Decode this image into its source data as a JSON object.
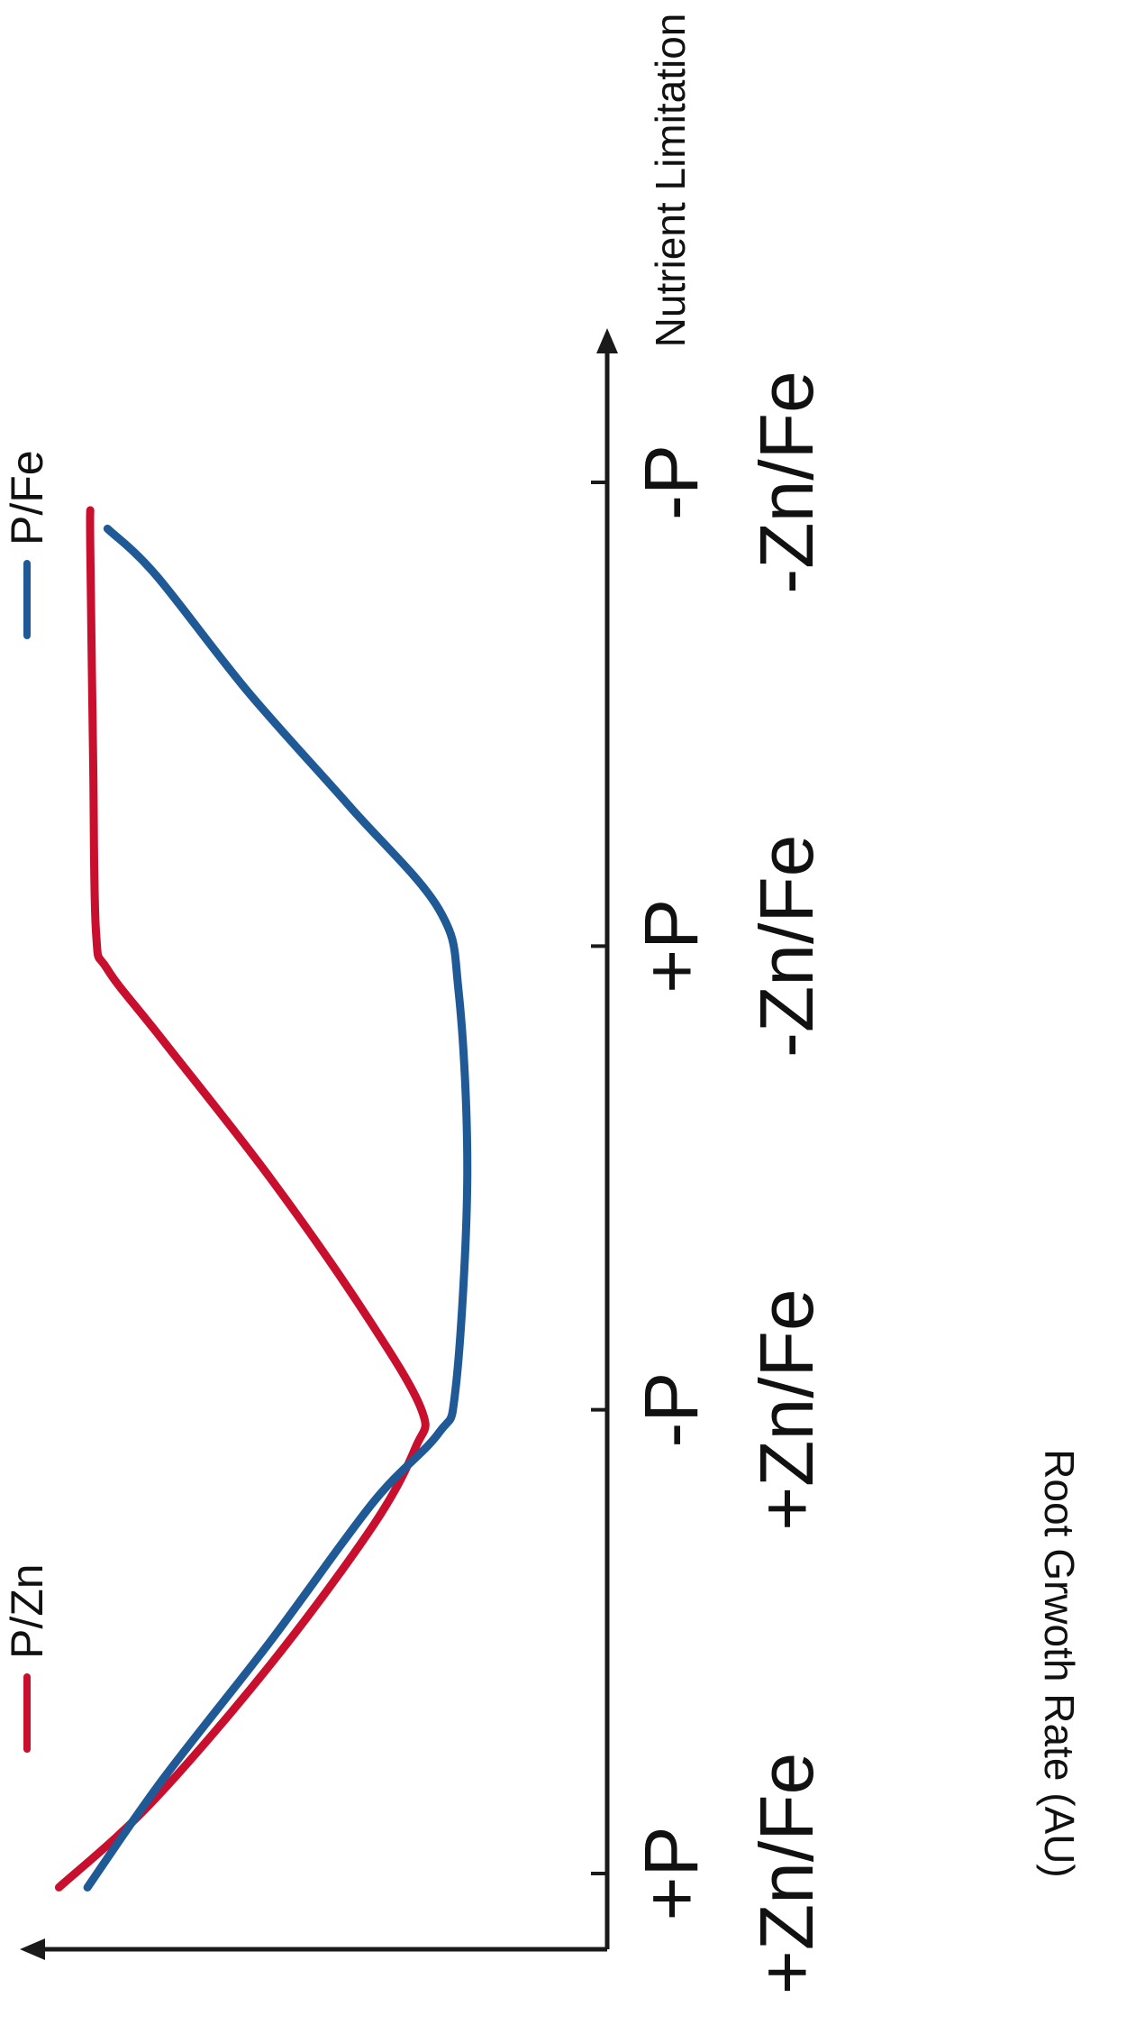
{
  "chart_data": {
    "type": "line",
    "xlabel": "Nutrient Limitation",
    "ylabel": "Root Grwoth Rate (AU)",
    "categories": [
      {
        "p": "+P",
        "znfe": "+Zn/Fe"
      },
      {
        "p": "-P",
        "znfe": "+Zn/Fe"
      },
      {
        "p": "+P",
        "znfe": "-Zn/Fe"
      },
      {
        "p": "-P",
        "znfe": "-Zn/Fe"
      }
    ],
    "x_range": [
      -0.1,
      3.4
    ],
    "ylim": [
      0,
      10
    ],
    "grid": false,
    "legend_placement": "top",
    "series": [
      {
        "name": "P/Zn",
        "color": "#c8102e",
        "points": [
          [
            -0.03,
            9.6
          ],
          [
            0.15,
            8.0
          ],
          [
            0.45,
            5.9
          ],
          [
            0.75,
            4.1
          ],
          [
            0.92,
            3.35
          ],
          [
            1.0,
            3.25
          ],
          [
            1.2,
            4.2
          ],
          [
            1.5,
            5.9
          ],
          [
            1.8,
            7.8
          ],
          [
            1.95,
            8.75
          ],
          [
            2.03,
            8.95
          ],
          [
            2.4,
            9.0
          ],
          [
            2.86,
            9.05
          ],
          [
            2.94,
            9.05
          ]
        ]
      },
      {
        "name": "P/Fe",
        "color": "#1f5a96",
        "points": [
          [
            -0.03,
            9.1
          ],
          [
            0.2,
            7.8
          ],
          [
            0.5,
            5.9
          ],
          [
            0.8,
            4.1
          ],
          [
            0.95,
            2.95
          ],
          [
            1.05,
            2.65
          ],
          [
            1.5,
            2.45
          ],
          [
            1.9,
            2.6
          ],
          [
            2.08,
            2.95
          ],
          [
            2.3,
            4.5
          ],
          [
            2.55,
            6.3
          ],
          [
            2.8,
            7.9
          ],
          [
            2.9,
            8.75
          ]
        ]
      }
    ]
  }
}
